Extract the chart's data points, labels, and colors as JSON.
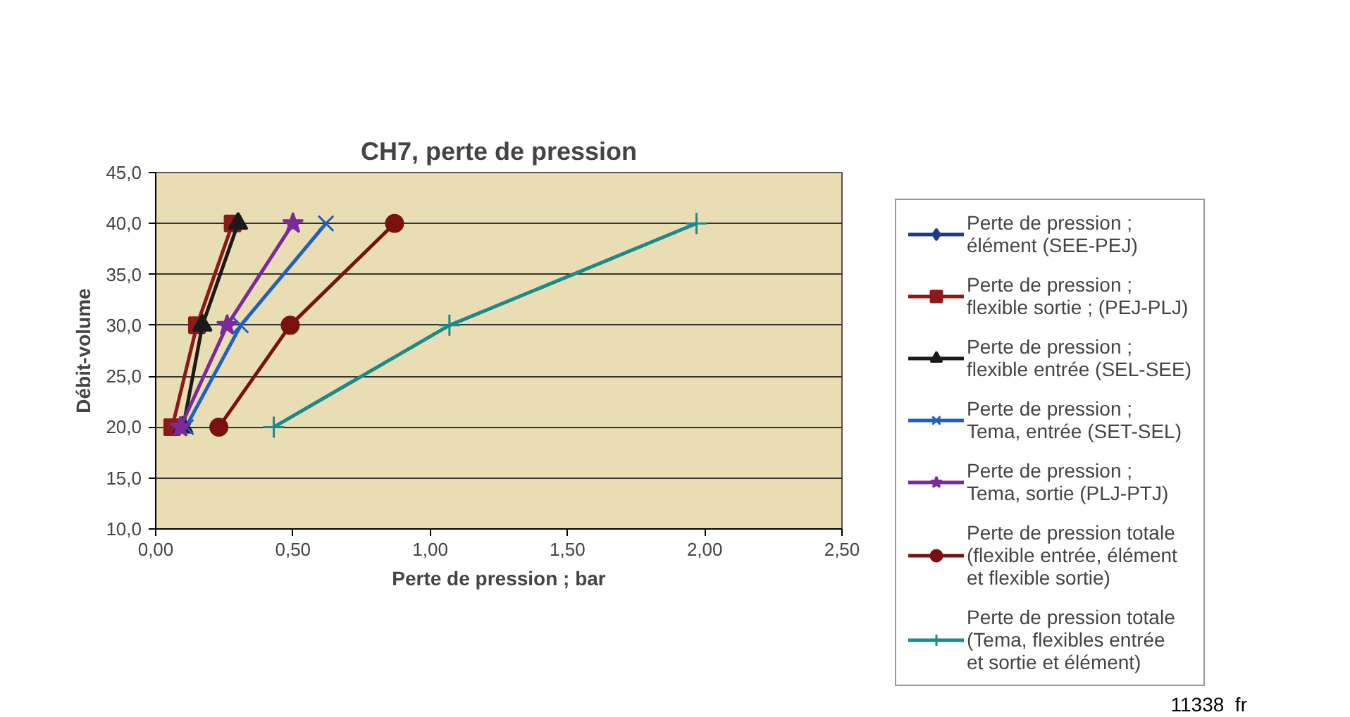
{
  "chart_data": {
    "type": "line",
    "title": "CH7, perte de pression",
    "xlabel": "Perte de pression ; bar",
    "ylabel": "Débit-volume",
    "xlim": [
      0,
      2.5
    ],
    "xticks": [
      {
        "value": 0,
        "label": "0,00"
      },
      {
        "value": 0.5,
        "label": "0,50"
      },
      {
        "value": 1,
        "label": "1,00"
      },
      {
        "value": 1.5,
        "label": "1,50"
      },
      {
        "value": 2,
        "label": "2,00"
      },
      {
        "value": 2.5,
        "label": "2,50"
      }
    ],
    "ylim": [
      10,
      45
    ],
    "yticks": [
      {
        "value": 10,
        "label": "10,0"
      },
      {
        "value": 15,
        "label": "15,0"
      },
      {
        "value": 20,
        "label": "20,0"
      },
      {
        "value": 25,
        "label": "25,0"
      },
      {
        "value": 30,
        "label": "30,0"
      },
      {
        "value": 35,
        "label": "35,0"
      },
      {
        "value": 40,
        "label": "40,0"
      },
      {
        "value": 45,
        "label": "45,0"
      }
    ],
    "grid": "y",
    "legend": "right",
    "series": [
      {
        "name": "Perte de pression ;\nélément (SEE-PEJ)",
        "color": "#1f3a8a",
        "marker": "diamond",
        "x": [
          null,
          null,
          null
        ],
        "values": [
          null,
          null,
          null
        ]
      },
      {
        "name": "Perte de pression ;\nflexible sortie ; (PEJ-PLJ)",
        "color": "#8b1a1a",
        "marker": "square",
        "x": [
          0.06,
          0.15,
          0.28
        ],
        "values": [
          20,
          30,
          40
        ]
      },
      {
        "name": "Perte de pression ;\nflexible entrée (SEL-SEE)",
        "color": "#1a1a1a",
        "marker": "triangle",
        "x": [
          0.1,
          0.17,
          0.3
        ],
        "values": [
          20,
          30,
          40
        ]
      },
      {
        "name": "Perte de pression ;\nTema, entrée (SET-SEL)",
        "color": "#2060c0",
        "marker": "cross",
        "x": [
          0.11,
          0.31,
          0.62
        ],
        "values": [
          20,
          30,
          40
        ]
      },
      {
        "name": "Perte de pression ;\nTema, sortie (PLJ-PTJ)",
        "color": "#7a2a9a",
        "marker": "star",
        "x": [
          0.09,
          0.26,
          0.5
        ],
        "values": [
          20,
          30,
          40
        ]
      },
      {
        "name": "Perte de pression totale\n(flexible entrée, élément\net flexible sortie)",
        "color": "#7a1010",
        "marker": "circle",
        "x": [
          0.23,
          0.49,
          0.87
        ],
        "values": [
          20,
          30,
          40
        ]
      },
      {
        "name": "Perte de pression totale\n(Tema, flexibles entrée\net sortie et élément)",
        "color": "#1a8a8a",
        "marker": "plus",
        "x": [
          0.43,
          1.07,
          1.97
        ],
        "values": [
          20,
          30,
          40
        ]
      }
    ],
    "annotations": [
      "11338  fr"
    ]
  }
}
